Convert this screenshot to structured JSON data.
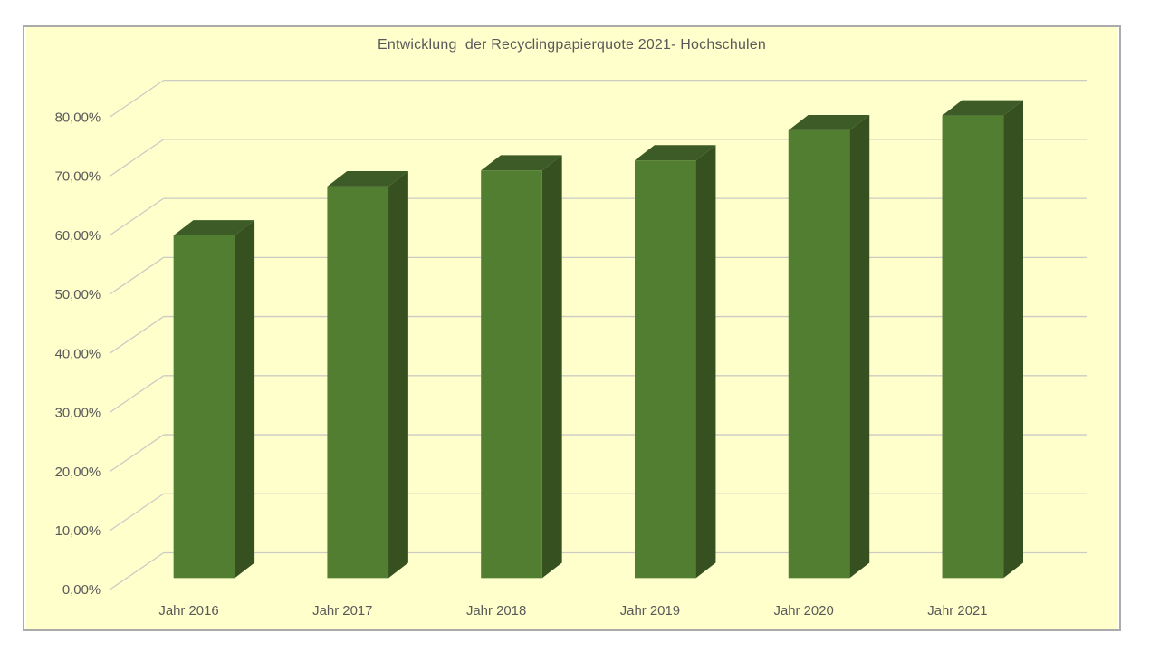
{
  "window": {
    "background_color": "#FFFFFF"
  },
  "chart": {
    "title": "Entwicklung  der Recyclingpapierquote 2021- Hochschulen",
    "background_color": "#FFFFCC",
    "border_color": "#ABABAB",
    "text_color": "#595959",
    "gridline_color": "#CBCBC4",
    "bar_front_color": "#527E32",
    "bar_top_color": "#3D5B27",
    "bar_side_color": "#36511F"
  },
  "chart_data": {
    "type": "bar",
    "subtype": "3d-column",
    "title": "Entwicklung der Recyclingpapierquote 2021- Hochschulen",
    "categories": [
      "Jahr 2016",
      "Jahr 2017",
      "Jahr 2018",
      "Jahr 2019",
      "Jahr 2020",
      "Jahr 2021"
    ],
    "values": [
      58.0,
      66.3,
      69.0,
      70.7,
      75.8,
      78.3
    ],
    "value_unit": "%",
    "xlabel": "",
    "ylabel": "",
    "ylim": [
      0,
      80
    ],
    "y_tick_step": 10,
    "y_tick_labels": [
      "0,00%",
      "10,00%",
      "20,00%",
      "30,00%",
      "40,00%",
      "50,00%",
      "60,00%",
      "70,00%",
      "80,00%"
    ],
    "grid": true,
    "legend": "none"
  }
}
